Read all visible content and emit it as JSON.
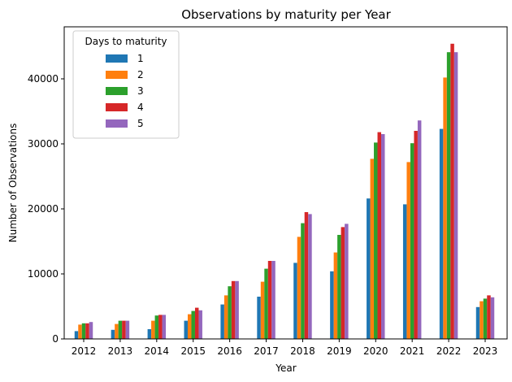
{
  "chart_data": {
    "type": "bar",
    "title": "Observations by maturity per Year",
    "xlabel": "Year",
    "ylabel": "Number of Observations",
    "categories": [
      "2012",
      "2013",
      "2014",
      "2015",
      "2016",
      "2017",
      "2018",
      "2019",
      "2020",
      "2021",
      "2022",
      "2023"
    ],
    "ylim": [
      0,
      48000
    ],
    "yticks": [
      0,
      10000,
      20000,
      30000,
      40000
    ],
    "grid": false,
    "legend": {
      "title": "Days to maturity",
      "placement": "upper-left"
    },
    "series": [
      {
        "name": "1",
        "color": "#1f77b4",
        "values": [
          1200,
          1400,
          1500,
          2800,
          5300,
          6500,
          11700,
          10400,
          21600,
          20700,
          32300,
          4900
        ]
      },
      {
        "name": "2",
        "color": "#ff7f0e",
        "values": [
          2200,
          2300,
          2800,
          3800,
          6700,
          8800,
          15700,
          13300,
          27700,
          27200,
          40200,
          5800
        ]
      },
      {
        "name": "3",
        "color": "#2ca02c",
        "values": [
          2400,
          2800,
          3600,
          4300,
          8100,
          10800,
          17800,
          16000,
          30200,
          30100,
          44100,
          6200
        ]
      },
      {
        "name": "4",
        "color": "#d62728",
        "values": [
          2400,
          2800,
          3700,
          4800,
          8900,
          12000,
          19500,
          17200,
          31800,
          32000,
          45400,
          6700
        ]
      },
      {
        "name": "5",
        "color": "#9467bd",
        "values": [
          2600,
          2800,
          3700,
          4400,
          8900,
          12000,
          19200,
          17700,
          31500,
          33600,
          44100,
          6400
        ]
      }
    ]
  }
}
